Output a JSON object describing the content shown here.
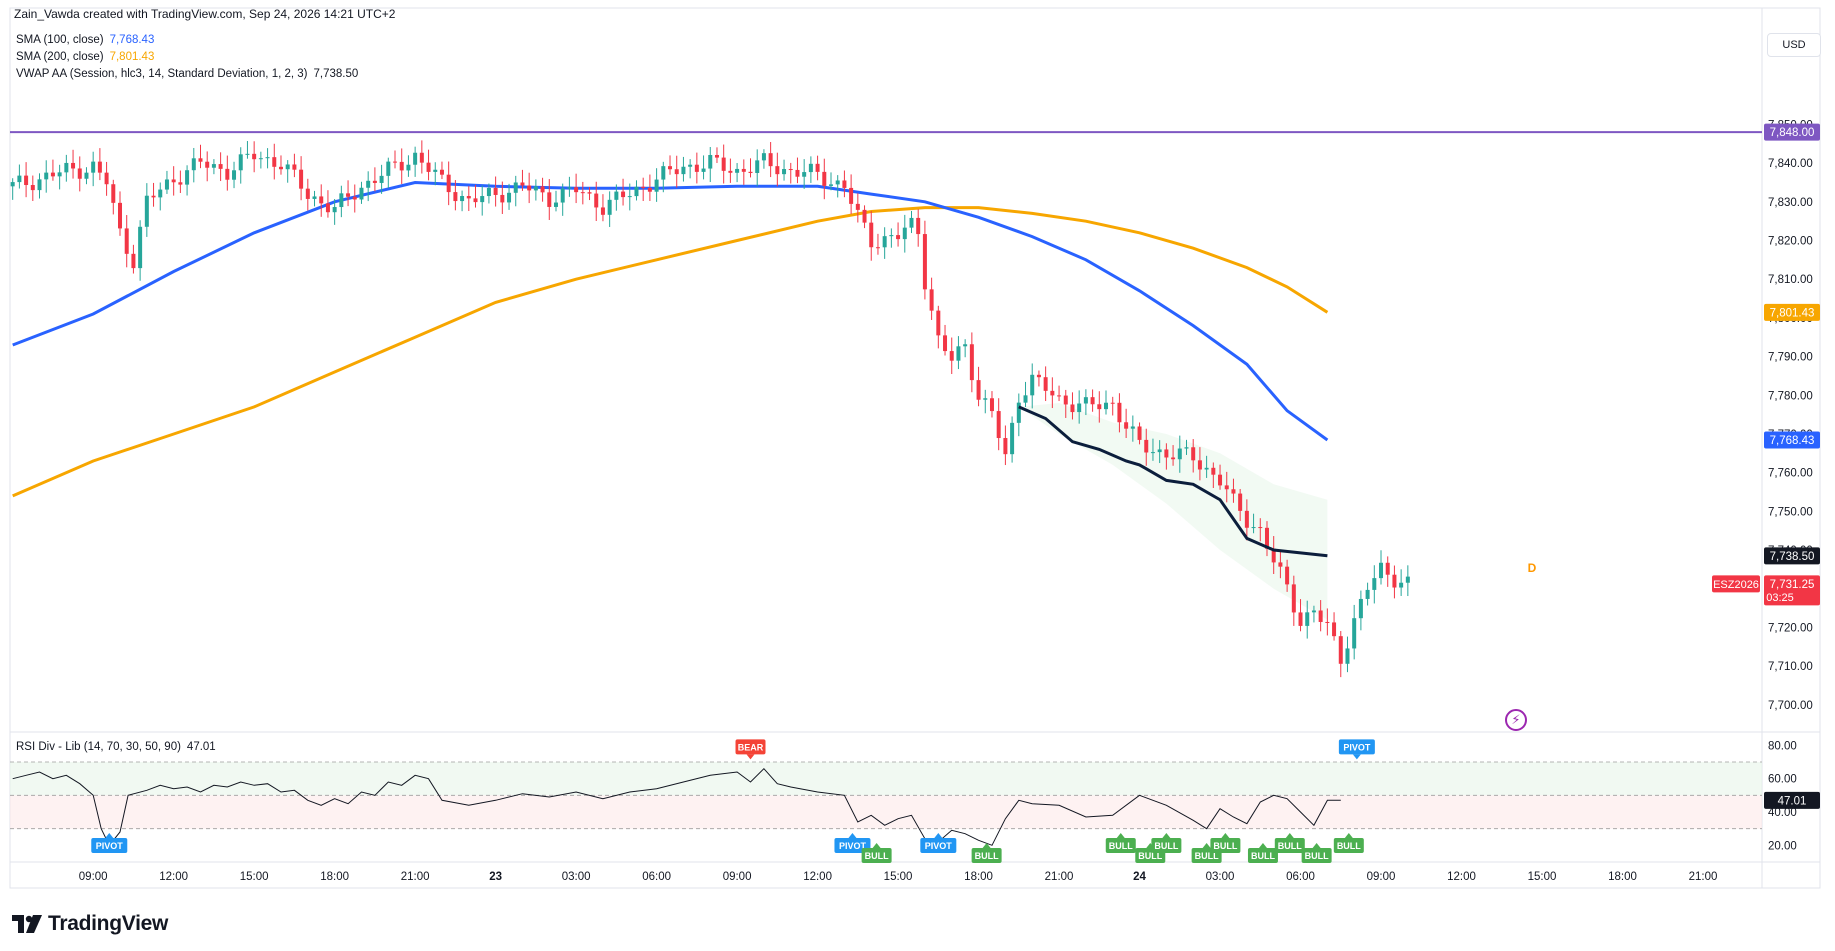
{
  "header": {
    "credit": "Zain_Vawda created with TradingView.com, Sep 24, 2026 14:21 UTC+2",
    "currency_button": "USD"
  },
  "indicators": [
    {
      "label": "SMA (100, close)",
      "value": "7,768.43",
      "color": "#2962ff"
    },
    {
      "label": "SMA (200, close)",
      "value": "7,801.43",
      "color": "#f7a600"
    },
    {
      "label": "VWAP AA (Session, hlc3, 14, Standard Deviation, 1, 2, 3)",
      "value": "7,738.50",
      "color": "#131722"
    }
  ],
  "rsi_panel": {
    "label": "RSI Div - Lib (14, 70, 30, 50, 90)",
    "value": "47.01"
  },
  "symbol_tag": "ESZ2026",
  "countdown": "03:25",
  "d_marker": "D",
  "brand": "TradingView",
  "colors": {
    "up": "#26a69a",
    "down": "#f23645",
    "sma100": "#2962ff",
    "sma200": "#f7a600",
    "vwap": "#0c1e3c",
    "hline": "#7e57c2",
    "bull_tag": "#4caf50",
    "bear_tag": "#f44336",
    "pivot_tag": "#2196f3"
  },
  "chart_data": {
    "type": "line",
    "title": "",
    "price_axis": {
      "ticks": [
        "7,850.00",
        "7,840.00",
        "7,830.00",
        "7,820.00",
        "7,810.00",
        "7,800.00",
        "7,790.00",
        "7,780.00",
        "7,770.00",
        "7,760.00",
        "7,750.00",
        "7,740.00",
        "7,730.00",
        "7,720.00",
        "7,710.00",
        "7,700.00"
      ],
      "tick_values": [
        7850,
        7840,
        7830,
        7820,
        7810,
        7800,
        7790,
        7780,
        7770,
        7760,
        7750,
        7740,
        7730,
        7720,
        7710,
        7700
      ],
      "ylim": [
        7694,
        7862
      ]
    },
    "time_axis": {
      "labels": [
        "09:00",
        "12:00",
        "15:00",
        "18:00",
        "21:00",
        "23",
        "03:00",
        "06:00",
        "09:00",
        "12:00",
        "15:00",
        "18:00",
        "21:00",
        "24",
        "03:00",
        "06:00",
        "09:00",
        "12:00",
        "15:00",
        "18:00",
        "21:00"
      ],
      "bold": [
        false,
        false,
        false,
        false,
        false,
        true,
        false,
        false,
        false,
        false,
        false,
        false,
        false,
        true,
        false,
        false,
        false,
        false,
        false,
        false,
        false
      ],
      "hours": [
        9,
        12,
        15,
        18,
        21,
        24,
        27,
        30,
        33,
        36,
        39,
        42,
        45,
        48,
        51,
        54,
        57,
        60,
        63,
        66,
        69
      ],
      "xlim": [
        5.9,
        71.2
      ]
    },
    "price_labels": [
      {
        "text": "7,848.00",
        "value": 7848,
        "color": "#7e57c2"
      },
      {
        "text": "7,801.43",
        "value": 7801.43,
        "color": "#f7a600"
      },
      {
        "text": "7,768.43",
        "value": 7768.43,
        "color": "#2962ff"
      },
      {
        "text": "7,738.50",
        "value": 7738.5,
        "color": "#131722"
      },
      {
        "text": "7,731.25",
        "value": 7731.25,
        "color": "#f23645"
      }
    ],
    "horizontal_line": 7848,
    "series": [
      {
        "name": "SMA (100, close)",
        "color": "#2962ff",
        "points": [
          [
            6,
            7793
          ],
          [
            9,
            7801
          ],
          [
            12,
            7812
          ],
          [
            15,
            7822
          ],
          [
            18,
            7830
          ],
          [
            21,
            7835
          ],
          [
            24,
            7834
          ],
          [
            27,
            7833.5
          ],
          [
            30,
            7833.5
          ],
          [
            33,
            7834
          ],
          [
            36,
            7834
          ],
          [
            38,
            7832
          ],
          [
            40,
            7830
          ],
          [
            42,
            7826
          ],
          [
            44,
            7821
          ],
          [
            46,
            7815
          ],
          [
            48,
            7807
          ],
          [
            50,
            7798
          ],
          [
            52,
            7788
          ],
          [
            53.5,
            7776
          ],
          [
            55,
            7768.43
          ]
        ]
      },
      {
        "name": "SMA (200, close)",
        "color": "#f7a600",
        "points": [
          [
            6,
            7754
          ],
          [
            9,
            7763
          ],
          [
            12,
            7770
          ],
          [
            15,
            7777
          ],
          [
            18,
            7786
          ],
          [
            21,
            7795
          ],
          [
            24,
            7804
          ],
          [
            27,
            7810
          ],
          [
            30,
            7815
          ],
          [
            33,
            7820
          ],
          [
            36,
            7825
          ],
          [
            38,
            7827.5
          ],
          [
            40,
            7828.5
          ],
          [
            42,
            7828.5
          ],
          [
            44,
            7827
          ],
          [
            46,
            7825
          ],
          [
            48,
            7822
          ],
          [
            50,
            7818
          ],
          [
            52,
            7813
          ],
          [
            53.5,
            7808
          ],
          [
            55,
            7801.43
          ]
        ]
      },
      {
        "name": "VWAP AA",
        "color": "#0c1e3c",
        "points": [
          [
            43.5,
            7777
          ],
          [
            44.5,
            7774
          ],
          [
            45.5,
            7768
          ],
          [
            46.5,
            7766
          ],
          [
            47.5,
            7763
          ],
          [
            48,
            7762
          ],
          [
            49,
            7758
          ],
          [
            50,
            7757
          ],
          [
            51,
            7753
          ],
          [
            52,
            7743
          ],
          [
            53,
            7740
          ],
          [
            55,
            7738.5
          ]
        ]
      }
    ],
    "vwap_band": {
      "upper": [
        [
          43.5,
          7777
        ],
        [
          45,
          7778
        ],
        [
          47,
          7773
        ],
        [
          49,
          7770
        ],
        [
          51,
          7765
        ],
        [
          53,
          7757
        ],
        [
          55,
          7753
        ]
      ],
      "lower": [
        [
          43.5,
          7777
        ],
        [
          45,
          7770
        ],
        [
          47,
          7762
        ],
        [
          49,
          7752
        ],
        [
          51,
          7740
        ],
        [
          53,
          7730
        ],
        [
          55,
          7722
        ]
      ]
    },
    "rsi": {
      "ylim": [
        10,
        88
      ],
      "ticks": [
        "80.00",
        "60.00",
        "40.00",
        "20.00"
      ],
      "tick_values": [
        80,
        60,
        40,
        20
      ],
      "levels": [
        70,
        50,
        30
      ],
      "value": 47.01,
      "points": [
        [
          6,
          60
        ],
        [
          6.5,
          62
        ],
        [
          7,
          64
        ],
        [
          7.5,
          60
        ],
        [
          8,
          62
        ],
        [
          8.5,
          57
        ],
        [
          9,
          50
        ],
        [
          9.3,
          30
        ],
        [
          9.6,
          20
        ],
        [
          10,
          28
        ],
        [
          10.3,
          50
        ],
        [
          11,
          53
        ],
        [
          11.5,
          56
        ],
        [
          12,
          54
        ],
        [
          12.5,
          55
        ],
        [
          13,
          52
        ],
        [
          13.5,
          56
        ],
        [
          14,
          55
        ],
        [
          14.5,
          58
        ],
        [
          15,
          56
        ],
        [
          15.5,
          57
        ],
        [
          16,
          52
        ],
        [
          16.5,
          53
        ],
        [
          17,
          47
        ],
        [
          17.5,
          44
        ],
        [
          18,
          48
        ],
        [
          18.5,
          45
        ],
        [
          19,
          52
        ],
        [
          19.5,
          50
        ],
        [
          20,
          58
        ],
        [
          20.5,
          56
        ],
        [
          21,
          62
        ],
        [
          21.5,
          60
        ],
        [
          22,
          47
        ],
        [
          23,
          44
        ],
        [
          24,
          47
        ],
        [
          25,
          51
        ],
        [
          26,
          49
        ],
        [
          27,
          52
        ],
        [
          28,
          48
        ],
        [
          29,
          52
        ],
        [
          30,
          54
        ],
        [
          31,
          58
        ],
        [
          32,
          62
        ],
        [
          33,
          64
        ],
        [
          33.5,
          58
        ],
        [
          34,
          66
        ],
        [
          34.5,
          57
        ],
        [
          35,
          55
        ],
        [
          36,
          52
        ],
        [
          37,
          50
        ],
        [
          37.5,
          34
        ],
        [
          38,
          38
        ],
        [
          38.5,
          32
        ],
        [
          39,
          36
        ],
        [
          39.5,
          38
        ],
        [
          40,
          24
        ],
        [
          40.5,
          22
        ],
        [
          41,
          29
        ],
        [
          41.5,
          27
        ],
        [
          42,
          23
        ],
        [
          42.5,
          20
        ],
        [
          43,
          36
        ],
        [
          43.5,
          47
        ],
        [
          44,
          45
        ],
        [
          45,
          44
        ],
        [
          46,
          37
        ],
        [
          47,
          38
        ],
        [
          48,
          50
        ],
        [
          49,
          44
        ],
        [
          50,
          35
        ],
        [
          50.5,
          30
        ],
        [
          51,
          42
        ],
        [
          51.5,
          37
        ],
        [
          52,
          33
        ],
        [
          52.5,
          46
        ],
        [
          53,
          50
        ],
        [
          53.5,
          48
        ],
        [
          54,
          40
        ],
        [
          54.5,
          32
        ],
        [
          55,
          47
        ],
        [
          55.5,
          47
        ]
      ]
    },
    "signal_tags": [
      {
        "text": "PIVOT",
        "kind": "pivot",
        "x": 9.6,
        "pos": "below"
      },
      {
        "text": "BEAR",
        "kind": "bear",
        "x": 33.5,
        "pos": "above"
      },
      {
        "text": "PIVOT",
        "kind": "pivot",
        "x": 37.3,
        "pos": "below"
      },
      {
        "text": "BULL",
        "kind": "bull",
        "x": 38.2,
        "pos": "below"
      },
      {
        "text": "PIVOT",
        "kind": "pivot",
        "x": 40.5,
        "pos": "below"
      },
      {
        "text": "BULL",
        "kind": "bull",
        "x": 42.3,
        "pos": "below"
      },
      {
        "text": "BULL",
        "kind": "bull",
        "x": 47.3,
        "pos": "below"
      },
      {
        "text": "BULL",
        "kind": "bull",
        "x": 48.4,
        "pos": "below"
      },
      {
        "text": "BULL",
        "kind": "bull",
        "x": 49.0,
        "pos": "below"
      },
      {
        "text": "BULL",
        "kind": "bull",
        "x": 50.5,
        "pos": "below"
      },
      {
        "text": "BULL",
        "kind": "bull",
        "x": 51.2,
        "pos": "below"
      },
      {
        "text": "BULL",
        "kind": "bull",
        "x": 52.6,
        "pos": "below"
      },
      {
        "text": "BULL",
        "kind": "bull",
        "x": 53.6,
        "pos": "below"
      },
      {
        "text": "BULL",
        "kind": "bull",
        "x": 54.6,
        "pos": "below"
      },
      {
        "text": "BULL",
        "kind": "bull",
        "x": 55.8,
        "pos": "below"
      },
      {
        "text": "PIVOT",
        "kind": "pivot",
        "x": 56.1,
        "pos": "above"
      }
    ],
    "price_path": [
      [
        6,
        7834
      ],
      [
        7,
        7836
      ],
      [
        8,
        7838
      ],
      [
        9,
        7839
      ],
      [
        9.5,
        7835
      ],
      [
        10,
        7822
      ],
      [
        10.5,
        7815
      ],
      [
        11,
        7830
      ],
      [
        12,
        7836
      ],
      [
        13,
        7840
      ],
      [
        14,
        7838
      ],
      [
        15,
        7842
      ],
      [
        16,
        7840
      ],
      [
        17,
        7832
      ],
      [
        18,
        7828
      ],
      [
        19,
        7834
      ],
      [
        20,
        7838
      ],
      [
        21,
        7842
      ],
      [
        22,
        7835
      ],
      [
        23,
        7830
      ],
      [
        24,
        7832
      ],
      [
        25,
        7834
      ],
      [
        26,
        7831
      ],
      [
        27,
        7833
      ],
      [
        28,
        7829
      ],
      [
        29,
        7832
      ],
      [
        30,
        7836
      ],
      [
        31,
        7839
      ],
      [
        32,
        7840
      ],
      [
        33,
        7838
      ],
      [
        34,
        7840
      ],
      [
        35,
        7838
      ],
      [
        36,
        7837
      ],
      [
        37,
        7834
      ],
      [
        37.5,
        7826
      ],
      [
        38,
        7820
      ],
      [
        39,
        7821
      ],
      [
        39.7,
        7825
      ],
      [
        40,
        7810
      ],
      [
        40.5,
        7794
      ],
      [
        41,
        7789
      ],
      [
        41.5,
        7793
      ],
      [
        42,
        7780
      ],
      [
        42.5,
        7775
      ],
      [
        43,
        7764
      ],
      [
        43.5,
        7780
      ],
      [
        44,
        7784
      ],
      [
        45,
        7779
      ],
      [
        46,
        7777
      ],
      [
        47,
        7778
      ],
      [
        47.5,
        7772
      ],
      [
        48,
        7767
      ],
      [
        49,
        7765
      ],
      [
        50,
        7764
      ],
      [
        51,
        7758
      ],
      [
        51.5,
        7752
      ],
      [
        52,
        7748
      ],
      [
        52.5,
        7745
      ],
      [
        53,
        7737
      ],
      [
        53.5,
        7730
      ],
      [
        54,
        7722
      ],
      [
        54.5,
        7724
      ],
      [
        55,
        7720
      ],
      [
        55.5,
        7712
      ],
      [
        56,
        7722
      ],
      [
        56.5,
        7730
      ],
      [
        57,
        7735
      ],
      [
        57.5,
        7733
      ],
      [
        58,
        7731.25
      ]
    ]
  }
}
